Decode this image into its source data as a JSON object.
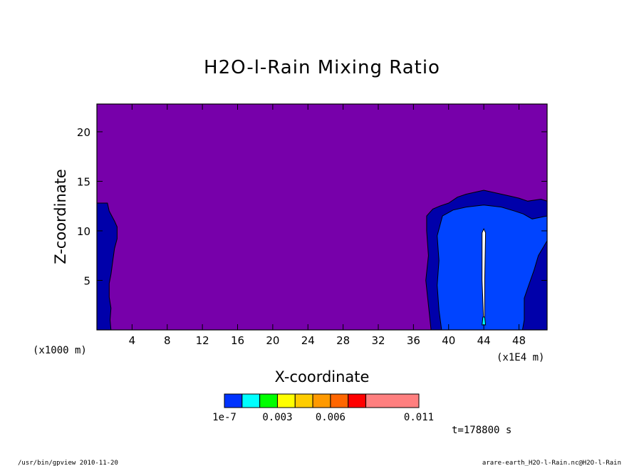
{
  "chart_data": {
    "type": "heatmap",
    "title": "H2O-l-Rain Mixing Ratio",
    "xlabel": "X-coordinate",
    "ylabel": "Z-coordinate",
    "x_unit_left": "(x1000 m)",
    "x_unit_right": "(x1E4 m)",
    "xlim": [
      0,
      51.2
    ],
    "ylim": [
      0,
      22.8
    ],
    "x_ticks": [
      4,
      8,
      12,
      16,
      20,
      24,
      28,
      32,
      36,
      40,
      44,
      48
    ],
    "x_tick_labels": [
      "4",
      "8",
      "12",
      "16",
      "20",
      "24",
      "28",
      "32",
      "36",
      "40",
      "44",
      "48"
    ],
    "y_ticks": [
      5,
      10,
      15,
      20
    ],
    "y_tick_labels": [
      "5",
      "10",
      "15",
      "20"
    ],
    "background_color": "#7700aa",
    "regions": [
      {
        "name": "left-edge-rain",
        "color": "#0000aa",
        "polygon": [
          [
            0,
            0
          ],
          [
            0,
            12.8
          ],
          [
            1.2,
            12.8
          ],
          [
            1.4,
            12
          ],
          [
            2.0,
            11.0
          ],
          [
            2.3,
            10.4
          ],
          [
            2.3,
            9.2
          ],
          [
            2.0,
            8.2
          ],
          [
            1.8,
            6.9
          ],
          [
            1.6,
            5.6
          ],
          [
            1.4,
            4.7
          ],
          [
            1.4,
            3.3
          ],
          [
            1.6,
            2.2
          ],
          [
            1.5,
            1.0
          ],
          [
            1.6,
            0
          ]
        ]
      },
      {
        "name": "right-cloud-outer",
        "color": "#0000aa",
        "polygon": [
          [
            38.0,
            0
          ],
          [
            37.7,
            2.5
          ],
          [
            37.4,
            5
          ],
          [
            37.7,
            7.5
          ],
          [
            37.5,
            10
          ],
          [
            37.5,
            11.5
          ],
          [
            38.2,
            12.2
          ],
          [
            39.0,
            12.5
          ],
          [
            40.0,
            12.8
          ],
          [
            41.0,
            13.4
          ],
          [
            42.0,
            13.7
          ],
          [
            43.0,
            13.9
          ],
          [
            44.0,
            14.1
          ],
          [
            45.0,
            13.9
          ],
          [
            46.0,
            13.7
          ],
          [
            47.0,
            13.5
          ],
          [
            48.0,
            13.3
          ],
          [
            49.0,
            13.0
          ],
          [
            50.5,
            13.2
          ],
          [
            51.2,
            13.0
          ],
          [
            51.2,
            0
          ]
        ]
      },
      {
        "name": "right-cloud-inner",
        "color": "#0044ff",
        "polygon": [
          [
            39.2,
            0
          ],
          [
            38.9,
            2
          ],
          [
            38.7,
            4.5
          ],
          [
            38.9,
            7
          ],
          [
            38.7,
            9.5
          ],
          [
            39.3,
            11.5
          ],
          [
            40.5,
            12.1
          ],
          [
            42.0,
            12.4
          ],
          [
            44.0,
            12.6
          ],
          [
            46.0,
            12.4
          ],
          [
            47.5,
            12.0
          ],
          [
            48.5,
            11.7
          ],
          [
            49.5,
            11.2
          ],
          [
            51.2,
            11.5
          ],
          [
            51.2,
            9.0
          ],
          [
            50.2,
            7.5
          ],
          [
            49.7,
            6.0
          ],
          [
            49.1,
            4.5
          ],
          [
            48.6,
            3.2
          ],
          [
            48.6,
            1.0
          ],
          [
            48.4,
            0
          ]
        ]
      },
      {
        "name": "center-shaft",
        "color": "#ffffff",
        "polygon": [
          [
            44.0,
            0.5
          ],
          [
            43.8,
            5
          ],
          [
            43.8,
            9.8
          ],
          [
            44.0,
            10.2
          ],
          [
            44.2,
            9.8
          ],
          [
            44.1,
            5
          ],
          [
            44.1,
            0.5
          ]
        ]
      },
      {
        "name": "shaft-base",
        "color": "#00ffff",
        "polygon": [
          [
            43.8,
            0.5
          ],
          [
            44.2,
            0.5
          ],
          [
            44.1,
            1.3
          ],
          [
            43.9,
            1.3
          ]
        ]
      }
    ],
    "colorbar": {
      "colors": [
        "#0033ff",
        "#00ffff",
        "#00ff00",
        "#ffff00",
        "#ffcc00",
        "#ff9900",
        "#ff6600",
        "#ff0000",
        "#ff7f7f"
      ],
      "widths": [
        1,
        1,
        1,
        1,
        1,
        1,
        1,
        1,
        3
      ],
      "labels": [
        {
          "text": "1e-7",
          "at": 0
        },
        {
          "text": "0.003",
          "at": 3
        },
        {
          "text": "0.006",
          "at": 6
        },
        {
          "text": "0.011",
          "at": 11
        }
      ],
      "total_units": 11
    },
    "annotations": {
      "time": "t=178800 s",
      "footer_left": "/usr/bin/gpview  2010-11-20",
      "footer_right": "arare-earth_H2O-l-Rain.nc@H2O-l-Rain"
    }
  }
}
